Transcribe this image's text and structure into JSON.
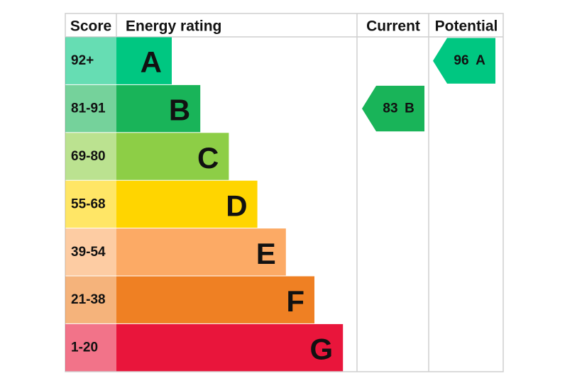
{
  "header": {
    "score": "Score",
    "rating": "Energy rating",
    "current": "Current",
    "potential": "Potential"
  },
  "bands": [
    {
      "score": "92+",
      "letter": "A",
      "color": "#00c781"
    },
    {
      "score": "81-91",
      "letter": "B",
      "color": "#19b459"
    },
    {
      "score": "69-80",
      "letter": "C",
      "color": "#8dce46"
    },
    {
      "score": "55-68",
      "letter": "D",
      "color": "#ffd500"
    },
    {
      "score": "39-54",
      "letter": "E",
      "color": "#fcaa65"
    },
    {
      "score": "21-38",
      "letter": "F",
      "color": "#ef8023"
    },
    {
      "score": "1-20",
      "letter": "G",
      "color": "#e9153b"
    }
  ],
  "current": {
    "score": 83,
    "letter": "B"
  },
  "potential": {
    "score": 96,
    "letter": "A"
  }
}
